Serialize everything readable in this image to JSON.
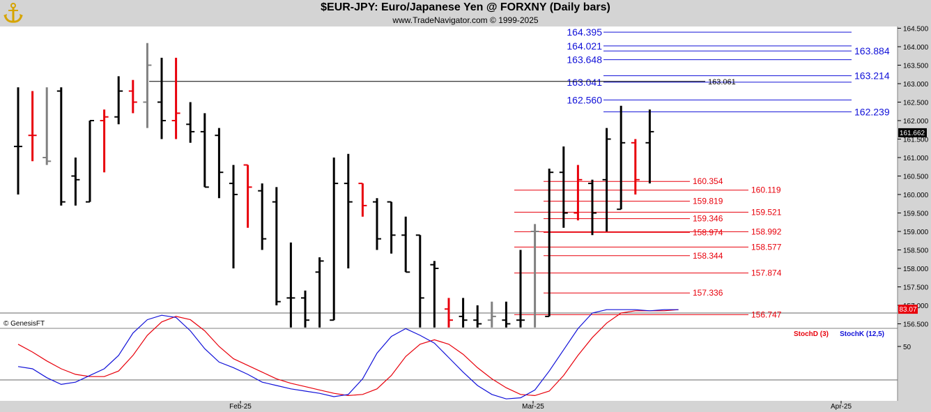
{
  "header": {
    "title": "$EUR-JPY:  Euro/Japanese Yen @ FORXNY  (Daily bars)",
    "subtitle": "www.TradeNavigator.com © 1999-2025",
    "logo_icon": "anchor-logo-icon"
  },
  "watermark": "© GenesisFT",
  "colors": {
    "up": "#000000",
    "down": "#e8000b",
    "neutral": "#808080",
    "blue_level": "#1010d8",
    "red_level": "#e8000b",
    "stochD": "#e8000b",
    "stochK": "#1010d8",
    "badge": "#000000",
    "stoch_badge": "#e8000b"
  },
  "chart_data": [
    {
      "type": "ohlc",
      "title": "$EUR-JPY:  Euro/Japanese Yen @ FORXNY  (Daily bars)",
      "ylim": [
        156.3,
        164.6
      ],
      "y_ticks": [
        "156.500",
        "157.000",
        "157.500",
        "158.000",
        "158.500",
        "159.000",
        "159.500",
        "160.000",
        "160.500",
        "161.000",
        "161.500",
        "162.000",
        "162.500",
        "163.000",
        "163.500",
        "164.000",
        "164.500"
      ],
      "x_ticks": [
        "Feb-25",
        "Mar-25",
        "Apr-25"
      ],
      "last_price": "161.662",
      "bars": [
        {
          "o": 161.3,
          "h": 162.9,
          "l": 160.0,
          "c": 161.3,
          "col": "up"
        },
        {
          "o": 161.6,
          "h": 162.8,
          "l": 160.9,
          "c": 161.6,
          "col": "down"
        },
        {
          "o": 161.0,
          "h": 162.9,
          "l": 160.8,
          "c": 160.9,
          "col": "neutral"
        },
        {
          "o": 162.8,
          "h": 162.9,
          "l": 159.7,
          "c": 159.8,
          "col": "up"
        },
        {
          "o": 160.5,
          "h": 161.0,
          "l": 159.7,
          "c": 160.4,
          "col": "up"
        },
        {
          "o": 159.8,
          "h": 162.0,
          "l": 159.8,
          "c": 162.0,
          "col": "up"
        },
        {
          "o": 162.0,
          "h": 162.3,
          "l": 160.6,
          "c": 162.1,
          "col": "down"
        },
        {
          "o": 162.1,
          "h": 163.2,
          "l": 161.9,
          "c": 162.8,
          "col": "up"
        },
        {
          "o": 162.8,
          "h": 163.1,
          "l": 162.2,
          "c": 162.5,
          "col": "down"
        },
        {
          "o": 162.5,
          "h": 164.1,
          "l": 161.8,
          "c": 163.5,
          "col": "neutral"
        },
        {
          "o": 162.5,
          "h": 163.7,
          "l": 161.5,
          "c": 162.0,
          "col": "up"
        },
        {
          "o": 162.0,
          "h": 163.7,
          "l": 161.5,
          "c": 162.2,
          "col": "down"
        },
        {
          "o": 161.9,
          "h": 162.5,
          "l": 161.4,
          "c": 161.7,
          "col": "up"
        },
        {
          "o": 161.7,
          "h": 162.2,
          "l": 160.2,
          "c": 160.2,
          "col": "up"
        },
        {
          "o": 161.6,
          "h": 161.8,
          "l": 159.9,
          "c": 160.6,
          "col": "up"
        },
        {
          "o": 160.3,
          "h": 160.8,
          "l": 158.0,
          "c": 160.0,
          "col": "up"
        },
        {
          "o": 160.8,
          "h": 160.8,
          "l": 159.1,
          "c": 160.2,
          "col": "down"
        },
        {
          "o": 160.1,
          "h": 160.3,
          "l": 158.5,
          "c": 158.8,
          "col": "up"
        },
        {
          "o": 159.8,
          "h": 160.2,
          "l": 157.0,
          "c": 157.1,
          "col": "up"
        },
        {
          "o": 157.2,
          "h": 158.7,
          "l": 156.4,
          "c": 157.2,
          "col": "up"
        },
        {
          "o": 157.2,
          "h": 157.4,
          "l": 156.4,
          "c": 156.6,
          "col": "up"
        },
        {
          "o": 157.9,
          "h": 158.3,
          "l": 156.4,
          "c": 158.2,
          "col": "up"
        },
        {
          "o": 156.6,
          "h": 161.0,
          "l": 156.6,
          "c": 160.3,
          "col": "up"
        },
        {
          "o": 160.3,
          "h": 161.1,
          "l": 158.0,
          "c": 159.8,
          "col": "up"
        },
        {
          "o": 160.3,
          "h": 160.3,
          "l": 159.4,
          "c": 159.7,
          "col": "down"
        },
        {
          "o": 159.8,
          "h": 159.9,
          "l": 158.5,
          "c": 158.8,
          "col": "up"
        },
        {
          "o": 159.8,
          "h": 159.8,
          "l": 158.4,
          "c": 158.9,
          "col": "up"
        },
        {
          "o": 158.9,
          "h": 159.4,
          "l": 157.9,
          "c": 157.9,
          "col": "up"
        },
        {
          "o": 158.9,
          "h": 158.9,
          "l": 156.4,
          "c": 157.2,
          "col": "up"
        },
        {
          "o": 158.1,
          "h": 158.2,
          "l": 156.4,
          "c": 158.0,
          "col": "up"
        },
        {
          "o": 156.9,
          "h": 157.2,
          "l": 156.4,
          "c": 156.6,
          "col": "down"
        },
        {
          "o": 156.7,
          "h": 157.2,
          "l": 156.4,
          "c": 156.6,
          "col": "up"
        },
        {
          "o": 156.6,
          "h": 157.0,
          "l": 156.4,
          "c": 156.5,
          "col": "up"
        },
        {
          "o": 156.6,
          "h": 157.1,
          "l": 156.4,
          "c": 156.7,
          "col": "neutral"
        },
        {
          "o": 156.6,
          "h": 157.1,
          "l": 156.4,
          "c": 156.5,
          "col": "up"
        },
        {
          "o": 156.6,
          "h": 158.5,
          "l": 156.4,
          "c": 156.6,
          "col": "up"
        },
        {
          "o": 159.0,
          "h": 159.2,
          "l": 156.4,
          "c": 159.0,
          "col": "neutral"
        },
        {
          "o": 156.7,
          "h": 160.7,
          "l": 156.7,
          "c": 160.6,
          "col": "up"
        },
        {
          "o": 160.6,
          "h": 161.3,
          "l": 159.1,
          "c": 159.5,
          "col": "up"
        },
        {
          "o": 159.5,
          "h": 160.8,
          "l": 159.3,
          "c": 160.4,
          "col": "down"
        },
        {
          "o": 160.3,
          "h": 160.4,
          "l": 158.9,
          "c": 159.5,
          "col": "up"
        },
        {
          "o": 160.4,
          "h": 161.8,
          "l": 159.0,
          "c": 161.5,
          "col": "up"
        },
        {
          "o": 159.6,
          "h": 162.4,
          "l": 159.6,
          "c": 161.4,
          "col": "up"
        },
        {
          "o": 161.4,
          "h": 161.5,
          "l": 160.0,
          "c": 160.4,
          "col": "down"
        },
        {
          "o": 161.4,
          "h": 162.3,
          "l": 160.3,
          "c": 161.7,
          "col": "up"
        }
      ],
      "levels": [
        {
          "label": "164.395",
          "value": 164.395,
          "color": "blue",
          "side": "left"
        },
        {
          "label": "164.021",
          "value": 164.021,
          "color": "blue",
          "side": "left"
        },
        {
          "label": "163.884",
          "value": 163.884,
          "color": "blue",
          "side": "right"
        },
        {
          "label": "163.648",
          "value": 163.648,
          "color": "blue",
          "side": "left"
        },
        {
          "label": "163.214",
          "value": 163.214,
          "color": "blue",
          "side": "right"
        },
        {
          "label": "163.041",
          "value": 163.041,
          "color": "blue",
          "side": "left"
        },
        {
          "label": "162.560",
          "value": 162.56,
          "color": "blue",
          "side": "left"
        },
        {
          "label": "162.239",
          "value": 162.239,
          "color": "blue",
          "side": "right"
        },
        {
          "label": "160.354",
          "value": 160.354,
          "color": "red",
          "side": "left"
        },
        {
          "label": "160.119",
          "value": 160.119,
          "color": "red",
          "side": "right"
        },
        {
          "label": "159.819",
          "value": 159.819,
          "color": "red",
          "side": "left"
        },
        {
          "label": "159.521",
          "value": 159.521,
          "color": "red",
          "side": "right"
        },
        {
          "label": "159.346",
          "value": 159.346,
          "color": "red",
          "side": "left"
        },
        {
          "label": "158.992",
          "value": 158.992,
          "color": "red",
          "side": "right"
        },
        {
          "label": "158.974",
          "value": 158.974,
          "color": "red",
          "side": "left"
        },
        {
          "label": "158.577",
          "value": 158.577,
          "color": "red",
          "side": "right"
        },
        {
          "label": "158.344",
          "value": 158.344,
          "color": "red",
          "side": "left"
        },
        {
          "label": "157.874",
          "value": 157.874,
          "color": "red",
          "side": "right"
        },
        {
          "label": "157.336",
          "value": 157.336,
          "color": "red",
          "side": "left"
        },
        {
          "label": "156.747",
          "value": 156.747,
          "color": "red",
          "side": "right"
        }
      ],
      "hline": {
        "label": "163.061",
        "value": 163.061
      }
    },
    {
      "type": "line",
      "ylim": [
        0,
        100
      ],
      "y_ticks": [
        "50"
      ],
      "reference_lines": [
        80,
        20
      ],
      "last_value": "83.07",
      "series": [
        {
          "name": "StochD (3)",
          "color": "red",
          "values": [
            52,
            45,
            37,
            30,
            25,
            23,
            23,
            28,
            42,
            60,
            72,
            77,
            74,
            64,
            50,
            39,
            33,
            27,
            21,
            17,
            14,
            11,
            8,
            6,
            7,
            12,
            24,
            41,
            52,
            56,
            52,
            43,
            31,
            21,
            13,
            7,
            6,
            10,
            24,
            42,
            58,
            71,
            80,
            82,
            82,
            82,
            83
          ]
        },
        {
          "name": "StochK (12,5)",
          "color": "blue",
          "values": [
            32,
            30,
            22,
            16,
            18,
            24,
            30,
            42,
            62,
            74,
            78,
            76,
            64,
            48,
            36,
            31,
            25,
            18,
            15,
            12,
            10,
            8,
            5,
            7,
            21,
            44,
            59,
            66,
            60,
            53,
            40,
            27,
            15,
            7,
            3,
            4,
            11,
            28,
            47,
            66,
            80,
            83,
            83,
            83,
            82,
            83,
            83
          ]
        }
      ]
    }
  ]
}
